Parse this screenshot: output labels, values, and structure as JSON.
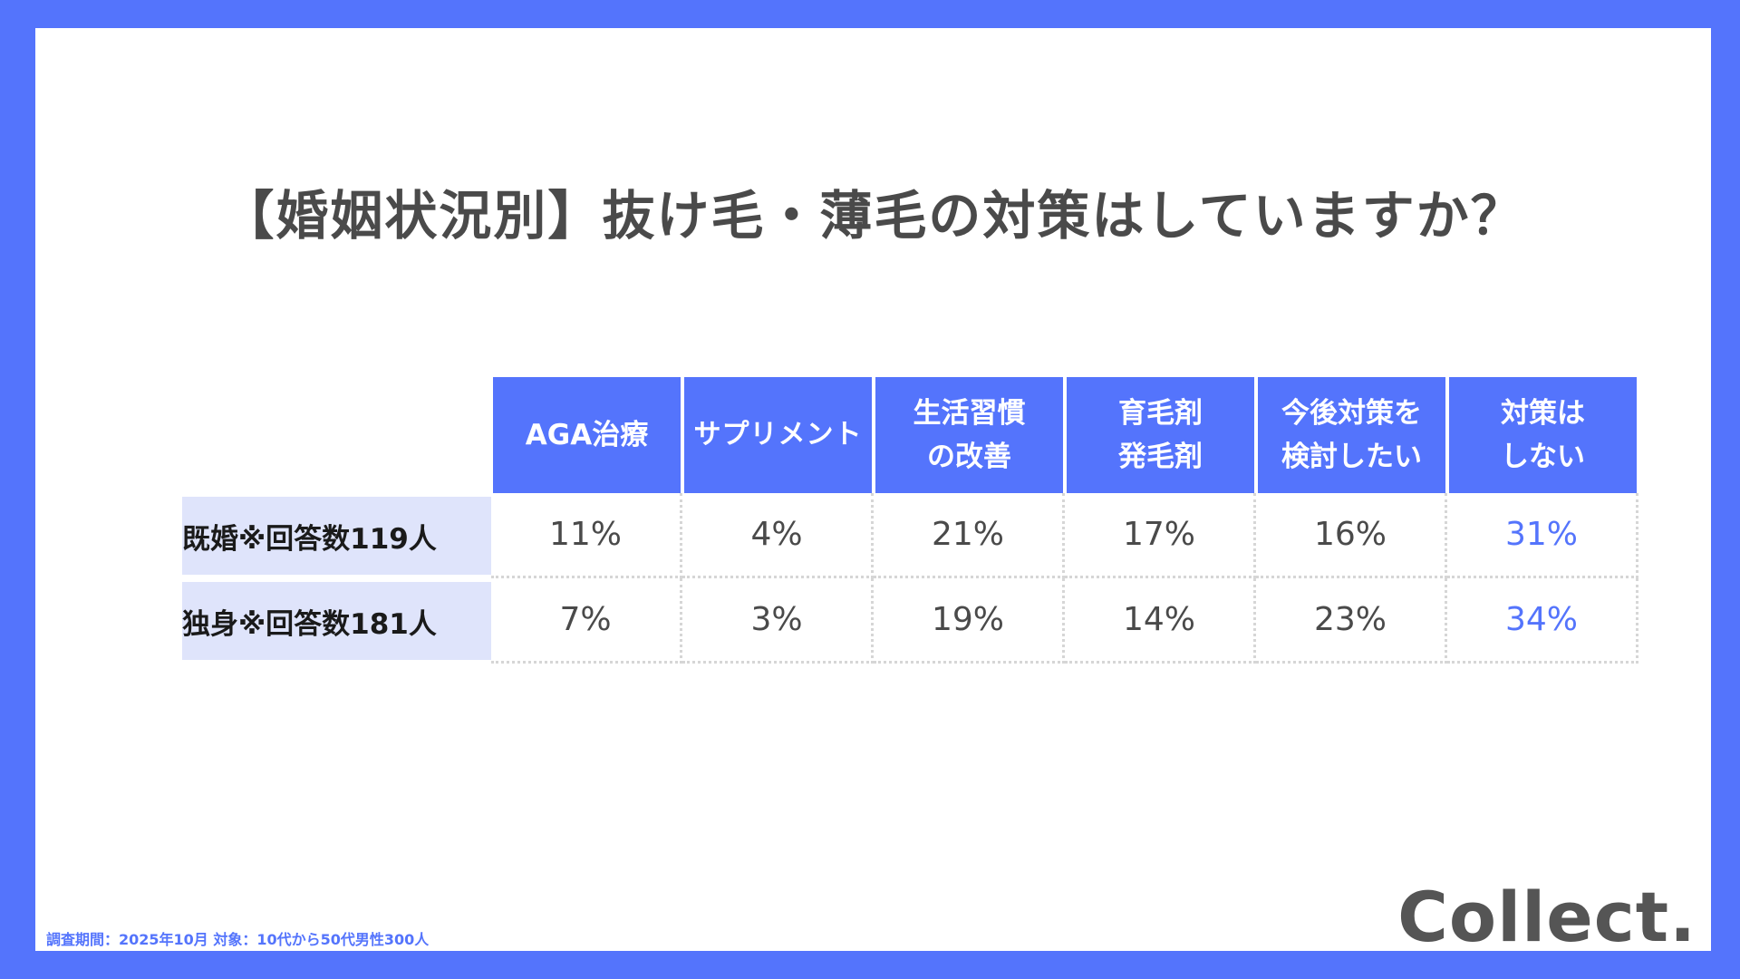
{
  "title": "【婚姻状況別】抜け毛・薄毛の対策はしていますか？",
  "chart_data": {
    "type": "table",
    "columns": [
      "AGA治療",
      "サプリメント",
      "生活習慣\nの改善",
      "育毛剤\n発毛剤",
      "今後対策を\n検討したい",
      "対策は\nしない"
    ],
    "rows": [
      {
        "label": "既婚※回答数119人",
        "values": [
          "11%",
          "4%",
          "21%",
          "17%",
          "16%",
          "31%"
        ]
      },
      {
        "label": "独身※回答数181人",
        "values": [
          "7%",
          "3%",
          "19%",
          "14%",
          "23%",
          "34%"
        ]
      }
    ],
    "highlight_column": 5,
    "colors": {
      "header_bg": "#5474fc",
      "row_header_bg": "#dfe4fb",
      "highlight_text": "#5474fc"
    }
  },
  "footnote": "調査期間：2025年10月  対象：10代から50代男性300人",
  "logo": "Collect."
}
